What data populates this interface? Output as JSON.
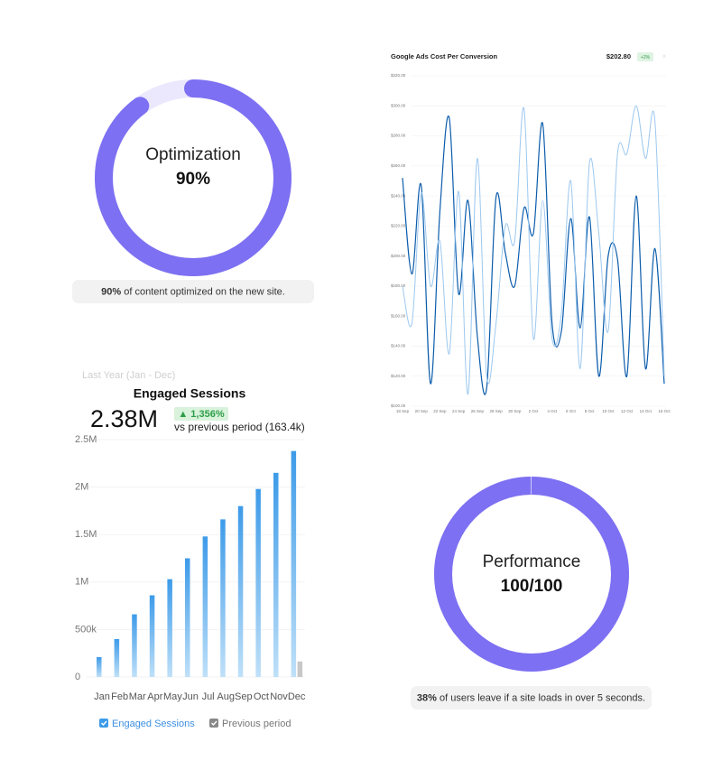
{
  "chart_data": [
    {
      "type": "donut",
      "title": "Optimization",
      "values": [
        90
      ],
      "value_labels": [
        "90%"
      ],
      "color": "#7d70f2",
      "track_color": "#ebe8fd",
      "caption": {
        "bold": "90%",
        "text": " of content optimized on the new site."
      }
    },
    {
      "type": "line",
      "title": "Google Ads Cost Per Conversion",
      "headline": "$202.80",
      "change": "+2%",
      "categories": [
        "18 Sep",
        null,
        "20 Sep",
        null,
        "22 Sep",
        null,
        "24 Sep",
        null,
        "26 Sep",
        null,
        "28 Sep",
        null,
        "30 Sep",
        null,
        "2 Oct",
        null,
        "4 Oct",
        null,
        "6 Oct",
        null,
        "8 Oct",
        null,
        "10 Oct",
        null,
        "12 Oct",
        null,
        "14 Oct",
        null,
        "16 Oct"
      ],
      "series": [
        {
          "color": "#0b5cab",
          "values": [
            252,
            188,
            247,
            115,
            230,
            292,
            175,
            237,
            147,
            112,
            239,
            202,
            180,
            232,
            215,
            288,
            155,
            150,
            225,
            152,
            226,
            120,
            200,
            198,
            120,
            240,
            125,
            205,
            115
          ]
        },
        {
          "color": "#9cc8ef",
          "values": [
            180,
            155,
            242,
            180,
            210,
            135,
            243,
            108,
            265,
            120,
            155,
            220,
            210,
            298,
            145,
            237,
            145,
            162,
            250,
            125,
            262,
            215,
            150,
            268,
            268,
            300,
            265,
            290,
            120
          ]
        }
      ],
      "ylim": [
        100,
        320
      ],
      "yticks": [
        {
          "value": 100,
          "label": "$100.00"
        },
        {
          "value": 120,
          "label": "$120.00"
        },
        {
          "value": 140,
          "label": "$140.00"
        },
        {
          "value": 160,
          "label": "$160.00"
        },
        {
          "value": 180,
          "label": "$180.00"
        },
        {
          "value": 200,
          "label": "$200.00"
        },
        {
          "value": 220,
          "label": "$220.00"
        },
        {
          "value": 240,
          "label": "$240.00"
        },
        {
          "value": 260,
          "label": "$260.00"
        },
        {
          "value": 280,
          "label": "$280.00"
        },
        {
          "value": 300,
          "label": "$300.00"
        },
        {
          "value": 320,
          "label": "$320.00"
        }
      ],
      "grid": true
    },
    {
      "type": "bar",
      "subtitle": "Last Year (Jan - Dec)",
      "title": "Engaged Sessions",
      "headline": "2.38M",
      "change": "▲ 1,356%",
      "comparison": "vs previous period (163.4k)",
      "categories": [
        "Jan",
        "Feb",
        "Mar",
        "Apr",
        "May",
        "Jun",
        "Jul",
        "Aug",
        "Sep",
        "Oct",
        "Nov",
        "Dec"
      ],
      "series": [
        {
          "name": "Engaged Sessions",
          "color": "#3d9be9",
          "values": [
            210000,
            400000,
            660000,
            860000,
            1030000,
            1250000,
            1480000,
            1660000,
            1800000,
            1980000,
            2150000,
            2380000
          ]
        },
        {
          "name": "Previous period",
          "color": "#c8c8c8",
          "values": [
            null,
            null,
            null,
            null,
            null,
            null,
            null,
            null,
            null,
            null,
            null,
            163400
          ]
        }
      ],
      "ylim": [
        0,
        2500000
      ],
      "yticks": [
        0,
        {
          "value": 500000,
          "label": "500k"
        },
        {
          "value": 1000000,
          "label": "1M"
        },
        {
          "value": 1500000,
          "label": "1.5M"
        },
        {
          "value": 2000000,
          "label": "2M"
        },
        {
          "value": 2500000,
          "label": "2.5M"
        }
      ],
      "grid": true
    },
    {
      "type": "donut",
      "title": "Performance",
      "values": [
        100
      ],
      "value_labels": [
        "100/100"
      ],
      "color": "#7d70f2",
      "track_color": "#ebe8fd",
      "caption": {
        "bold": "38%",
        "text": " of users leave if a site loads in over 5 seconds."
      }
    }
  ]
}
